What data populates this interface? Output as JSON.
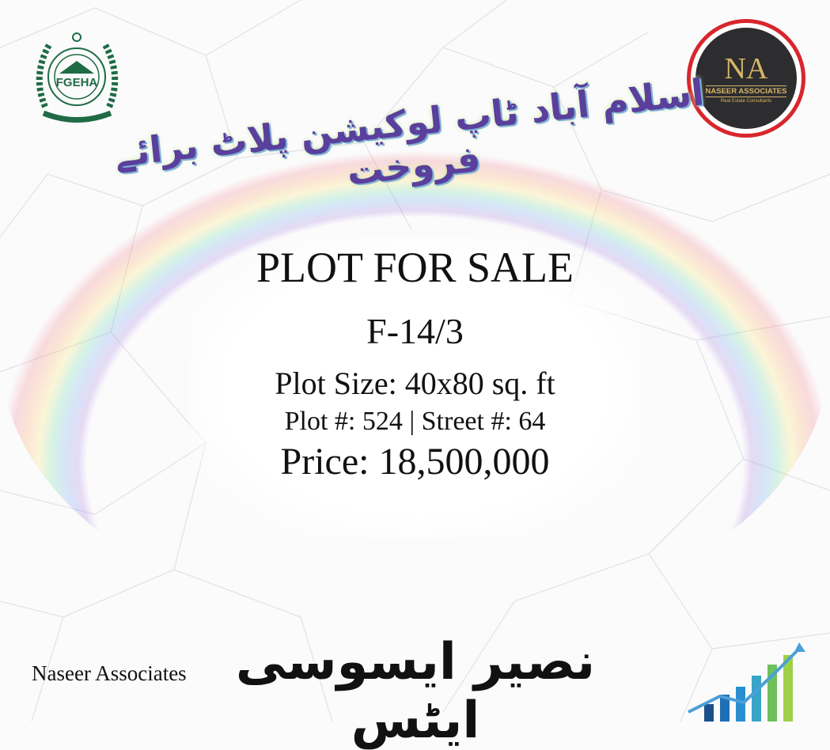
{
  "logos": {
    "left": {
      "text": "FGEHA",
      "icon": "fgeha-emblem",
      "color": "#1f6b45"
    },
    "right": {
      "mark": "NA",
      "name": "NASEER ASSOCIATES",
      "tagline": "Real Estate Consultants",
      "ring_color": "#d8262c",
      "gold": "#d6b567"
    }
  },
  "headline_urdu": "اسلام آباد ٹاپ لوکیشن پلاٹ برائے فروخت",
  "listing": {
    "title": "PLOT FOR SALE",
    "sector": "F-14/3",
    "plot_size": "Plot Size: 40x80 sq. ft",
    "plot_street": "Plot #: 524 | Street #: 64",
    "price": "Price: 18,500,000"
  },
  "footer": {
    "company_en": "Naseer Associates",
    "company_ur": "نصیر ایسوسی ایٹس",
    "icon": "growth-chart-icon"
  }
}
